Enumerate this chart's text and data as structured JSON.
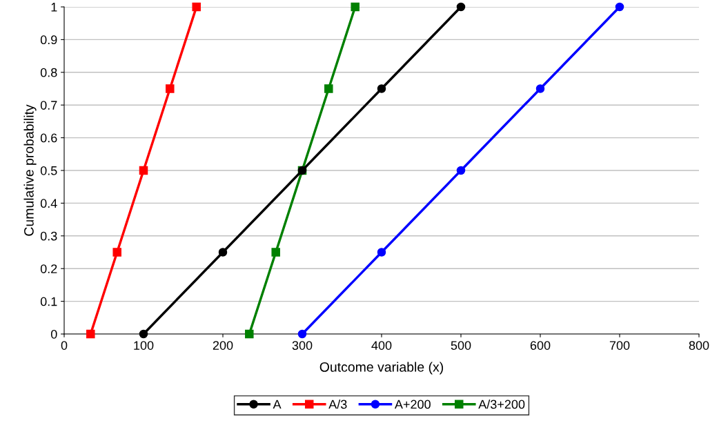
{
  "chart_data": {
    "type": "line",
    "xlabel": "Outcome variable (x)",
    "ylabel": "Cumulative probability",
    "xlim": [
      0,
      800
    ],
    "xticks": [
      0,
      100,
      200,
      300,
      400,
      500,
      600,
      700,
      800
    ],
    "ylim": [
      0,
      1
    ],
    "yticks": [
      0,
      0.1,
      0.2,
      0.3,
      0.4,
      0.5,
      0.6,
      0.7,
      0.8,
      0.9,
      1
    ],
    "grid": "y",
    "legend": "bottom",
    "line_style": "solid",
    "series": [
      {
        "name": "A",
        "color": "#000000",
        "marker": "circle",
        "x": [
          100,
          200,
          300,
          400,
          500
        ],
        "values": [
          0,
          0.25,
          0.5,
          0.75,
          1
        ]
      },
      {
        "name": "A/3",
        "color": "#ff0000",
        "marker": "square",
        "x": [
          33.3,
          66.7,
          100,
          133.3,
          166.7
        ],
        "values": [
          0,
          0.25,
          0.5,
          0.75,
          1
        ]
      },
      {
        "name": "A+200",
        "color": "#0000ff",
        "marker": "circle",
        "x": [
          300,
          400,
          500,
          600,
          700
        ],
        "values": [
          0,
          0.25,
          0.5,
          0.75,
          1
        ]
      },
      {
        "name": "A/3+200",
        "color": "#008000",
        "marker": "square",
        "x": [
          233.3,
          266.7,
          300,
          333.3,
          366.7
        ],
        "values": [
          0,
          0.25,
          0.5,
          0.75,
          1
        ]
      }
    ]
  }
}
